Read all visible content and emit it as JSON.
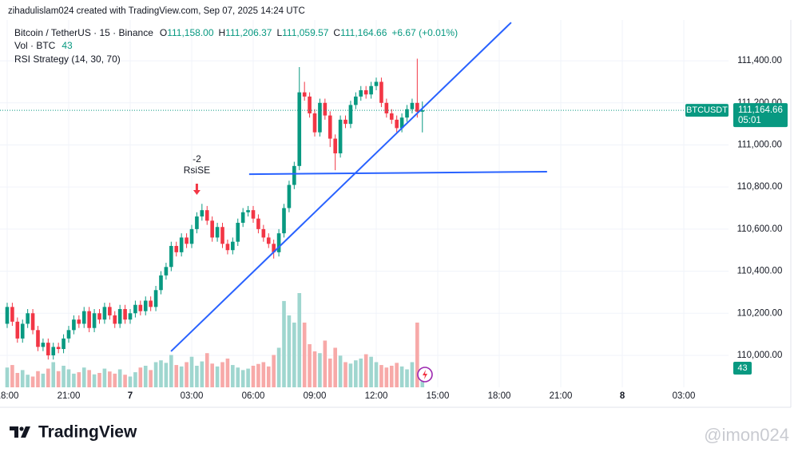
{
  "header": "zihadulislam024 created with TradingView.com, Sep 07, 2025 14:24 UTC",
  "footer": {
    "logo": "TradingView",
    "watermark": "@imon024"
  },
  "chart_data": {
    "type": "candlestick",
    "legend": {
      "symbol": "Bitcoin / TetherUS · 15 · Binance",
      "prefixes": [
        "O",
        "H",
        "L",
        "C"
      ],
      "change": "+6.67 (+0.01%)",
      "volume": "Vol · BTC",
      "indicator": "RSI Strategy (14, 30, 70)"
    },
    "value_labels": {
      "open": "111,158.00",
      "high": "111,206.37",
      "low": "111,059.57",
      "close": "111,164.66"
    },
    "symbol_tag": "BTCUSDT",
    "countdown": "05:01",
    "up_color": "#089981",
    "down_color": "#f23645",
    "volume_up_color": "#9fd6cf",
    "volume_down_color": "#f7a9a8",
    "line_color": "#2962ff",
    "grid": true,
    "xlim": [
      -0.35,
      35.18
    ],
    "ylim": [
      109848,
      111594
    ],
    "xticks": [
      {
        "value": 0,
        "label": "18:00"
      },
      {
        "value": 3,
        "label": "21:00"
      },
      {
        "value": 6,
        "label": "7"
      },
      {
        "value": 9,
        "label": "03:00"
      },
      {
        "value": 12,
        "label": "06:00"
      },
      {
        "value": 15,
        "label": "09:00"
      },
      {
        "value": 18,
        "label": "12:00"
      },
      {
        "value": 21,
        "label": "15:00"
      },
      {
        "value": 24,
        "label": "18:00"
      },
      {
        "value": 27,
        "label": "21:00"
      },
      {
        "value": 30,
        "label": "8"
      },
      {
        "value": 33,
        "label": "03:00"
      }
    ],
    "yticks": [
      {
        "value": 110000,
        "label": "110,000.00"
      },
      {
        "value": 110200,
        "label": "110,200.00"
      },
      {
        "value": 110400,
        "label": "110,400.00"
      },
      {
        "value": 110600,
        "label": "110,600.00"
      },
      {
        "value": 110800,
        "label": "110,800.00"
      },
      {
        "value": 111000,
        "label": "111,000.00"
      },
      {
        "value": 111200,
        "label": "111,200.00"
      },
      {
        "value": 111400,
        "label": "111,400.00"
      }
    ],
    "x": [
      0,
      0.25,
      0.5,
      0.75,
      1,
      1.25,
      1.5,
      1.75,
      2,
      2.25,
      2.5,
      2.75,
      3,
      3.25,
      3.5,
      3.75,
      4,
      4.25,
      4.5,
      4.75,
      5,
      5.25,
      5.5,
      5.75,
      6,
      6.25,
      6.5,
      6.75,
      7,
      7.25,
      7.5,
      7.75,
      8,
      8.25,
      8.5,
      8.75,
      9,
      9.25,
      9.5,
      9.75,
      10,
      10.25,
      10.5,
      10.75,
      11,
      11.25,
      11.5,
      11.75,
      12,
      12.25,
      12.5,
      12.75,
      13,
      13.25,
      13.5,
      13.75,
      14,
      14.25,
      14.5,
      14.75,
      15,
      15.25,
      15.5,
      15.75,
      16,
      16.25,
      16.5,
      16.75,
      17,
      17.25,
      17.5,
      17.75,
      18,
      18.25,
      18.5,
      18.75,
      19,
      19.25,
      19.5,
      19.75,
      20,
      20.25
    ],
    "open": [
      110150,
      110230,
      110160,
      110080,
      110150,
      110200,
      110120,
      110040,
      110060,
      110000,
      110040,
      110030,
      110080,
      110120,
      110170,
      110150,
      110210,
      110130,
      110200,
      110170,
      110230,
      110190,
      110150,
      110220,
      110170,
      110200,
      110240,
      110210,
      110260,
      110230,
      110310,
      110380,
      110420,
      110520,
      110490,
      110560,
      110530,
      110600,
      110660,
      110690,
      110640,
      110560,
      110610,
      110530,
      110500,
      110540,
      110630,
      110680,
      110690,
      110650,
      110600,
      110560,
      110530,
      110490,
      110580,
      110700,
      110810,
      110900,
      111250,
      111230,
      111150,
      111060,
      111200,
      111140,
      111030,
      110960,
      111120,
      111100,
      111190,
      111230,
      111260,
      111240,
      111280,
      111300,
      111200,
      111150,
      111120,
      111080,
      111130,
      111170,
      111200,
      111158
    ],
    "high": [
      110250,
      110250,
      110180,
      110170,
      110220,
      110220,
      110140,
      110080,
      110080,
      110060,
      110060,
      110100,
      110140,
      110190,
      110190,
      110230,
      110230,
      110220,
      110220,
      110250,
      110250,
      110210,
      110240,
      110240,
      110220,
      110260,
      110260,
      110280,
      110280,
      110330,
      110400,
      110440,
      110540,
      110540,
      110580,
      110580,
      110620,
      110680,
      110720,
      110710,
      110660,
      110630,
      110630,
      110550,
      110560,
      110650,
      110700,
      110710,
      110710,
      110670,
      110620,
      110580,
      110550,
      110600,
      110720,
      110830,
      110920,
      111370,
      111300,
      111250,
      111170,
      111220,
      111220,
      111160,
      111050,
      111140,
      111140,
      111210,
      111250,
      111280,
      111280,
      111300,
      111320,
      111320,
      111220,
      111170,
      111140,
      111150,
      111190,
      111220,
      111410,
      111206.37
    ],
    "low": [
      110130,
      110140,
      110060,
      110060,
      110130,
      110100,
      110020,
      110020,
      109980,
      109980,
      110010,
      110010,
      110060,
      110100,
      110130,
      110130,
      110110,
      110110,
      110150,
      110150,
      110170,
      110130,
      110130,
      110150,
      110150,
      110180,
      110190,
      110190,
      110210,
      110210,
      110290,
      110360,
      110400,
      110470,
      110470,
      110510,
      110510,
      110580,
      110640,
      110620,
      110540,
      110540,
      110510,
      110480,
      110480,
      110520,
      110610,
      110660,
      110630,
      110580,
      110540,
      110510,
      110460,
      110470,
      110560,
      110680,
      110790,
      110880,
      111210,
      111130,
      111040,
      111040,
      111120,
      110990,
      110880,
      110940,
      111080,
      111080,
      111170,
      111210,
      111220,
      111220,
      111260,
      111180,
      111130,
      111100,
      111060,
      111060,
      111110,
      111150,
      111130,
      111059.57
    ],
    "close": [
      110230,
      110160,
      110080,
      110150,
      110200,
      110120,
      110040,
      110060,
      110000,
      110040,
      110030,
      110080,
      110120,
      110170,
      110150,
      110210,
      110130,
      110200,
      110170,
      110230,
      110190,
      110150,
      110220,
      110170,
      110200,
      110240,
      110210,
      110260,
      110230,
      110310,
      110380,
      110420,
      110520,
      110490,
      110560,
      110530,
      110600,
      110660,
      110690,
      110640,
      110560,
      110610,
      110530,
      110500,
      110540,
      110630,
      110680,
      110690,
      110650,
      110600,
      110560,
      110530,
      110490,
      110580,
      110700,
      110810,
      110900,
      111250,
      111230,
      111150,
      111060,
      111200,
      111140,
      111030,
      110960,
      111120,
      111100,
      111190,
      111230,
      111260,
      111240,
      111280,
      111300,
      111200,
      111150,
      111120,
      111080,
      111130,
      111170,
      111200,
      111158,
      111164.66
    ],
    "volume": [
      55,
      62,
      40,
      48,
      35,
      30,
      45,
      38,
      52,
      70,
      45,
      60,
      50,
      38,
      42,
      55,
      48,
      36,
      40,
      52,
      44,
      38,
      50,
      35,
      30,
      42,
      55,
      60,
      48,
      70,
      75,
      68,
      90,
      62,
      58,
      70,
      85,
      60,
      72,
      95,
      66,
      58,
      70,
      80,
      62,
      55,
      48,
      52,
      60,
      65,
      70,
      58,
      90,
      110,
      240,
      200,
      180,
      262,
      180,
      120,
      100,
      95,
      130,
      80,
      110,
      88,
      70,
      66,
      75,
      80,
      92,
      85,
      70,
      62,
      55,
      60,
      68,
      58,
      50,
      70,
      180,
      43
    ],
    "signal": {
      "x": 9.25,
      "value": "-2",
      "label": "RsiSE"
    },
    "trendlines": [
      {
        "x": [
          7.99,
          24.58
        ],
        "y": [
          110019,
          111582
        ]
      },
      {
        "x": [
          11.8,
          26.33
        ],
        "y": [
          110861,
          110873
        ]
      }
    ]
  }
}
